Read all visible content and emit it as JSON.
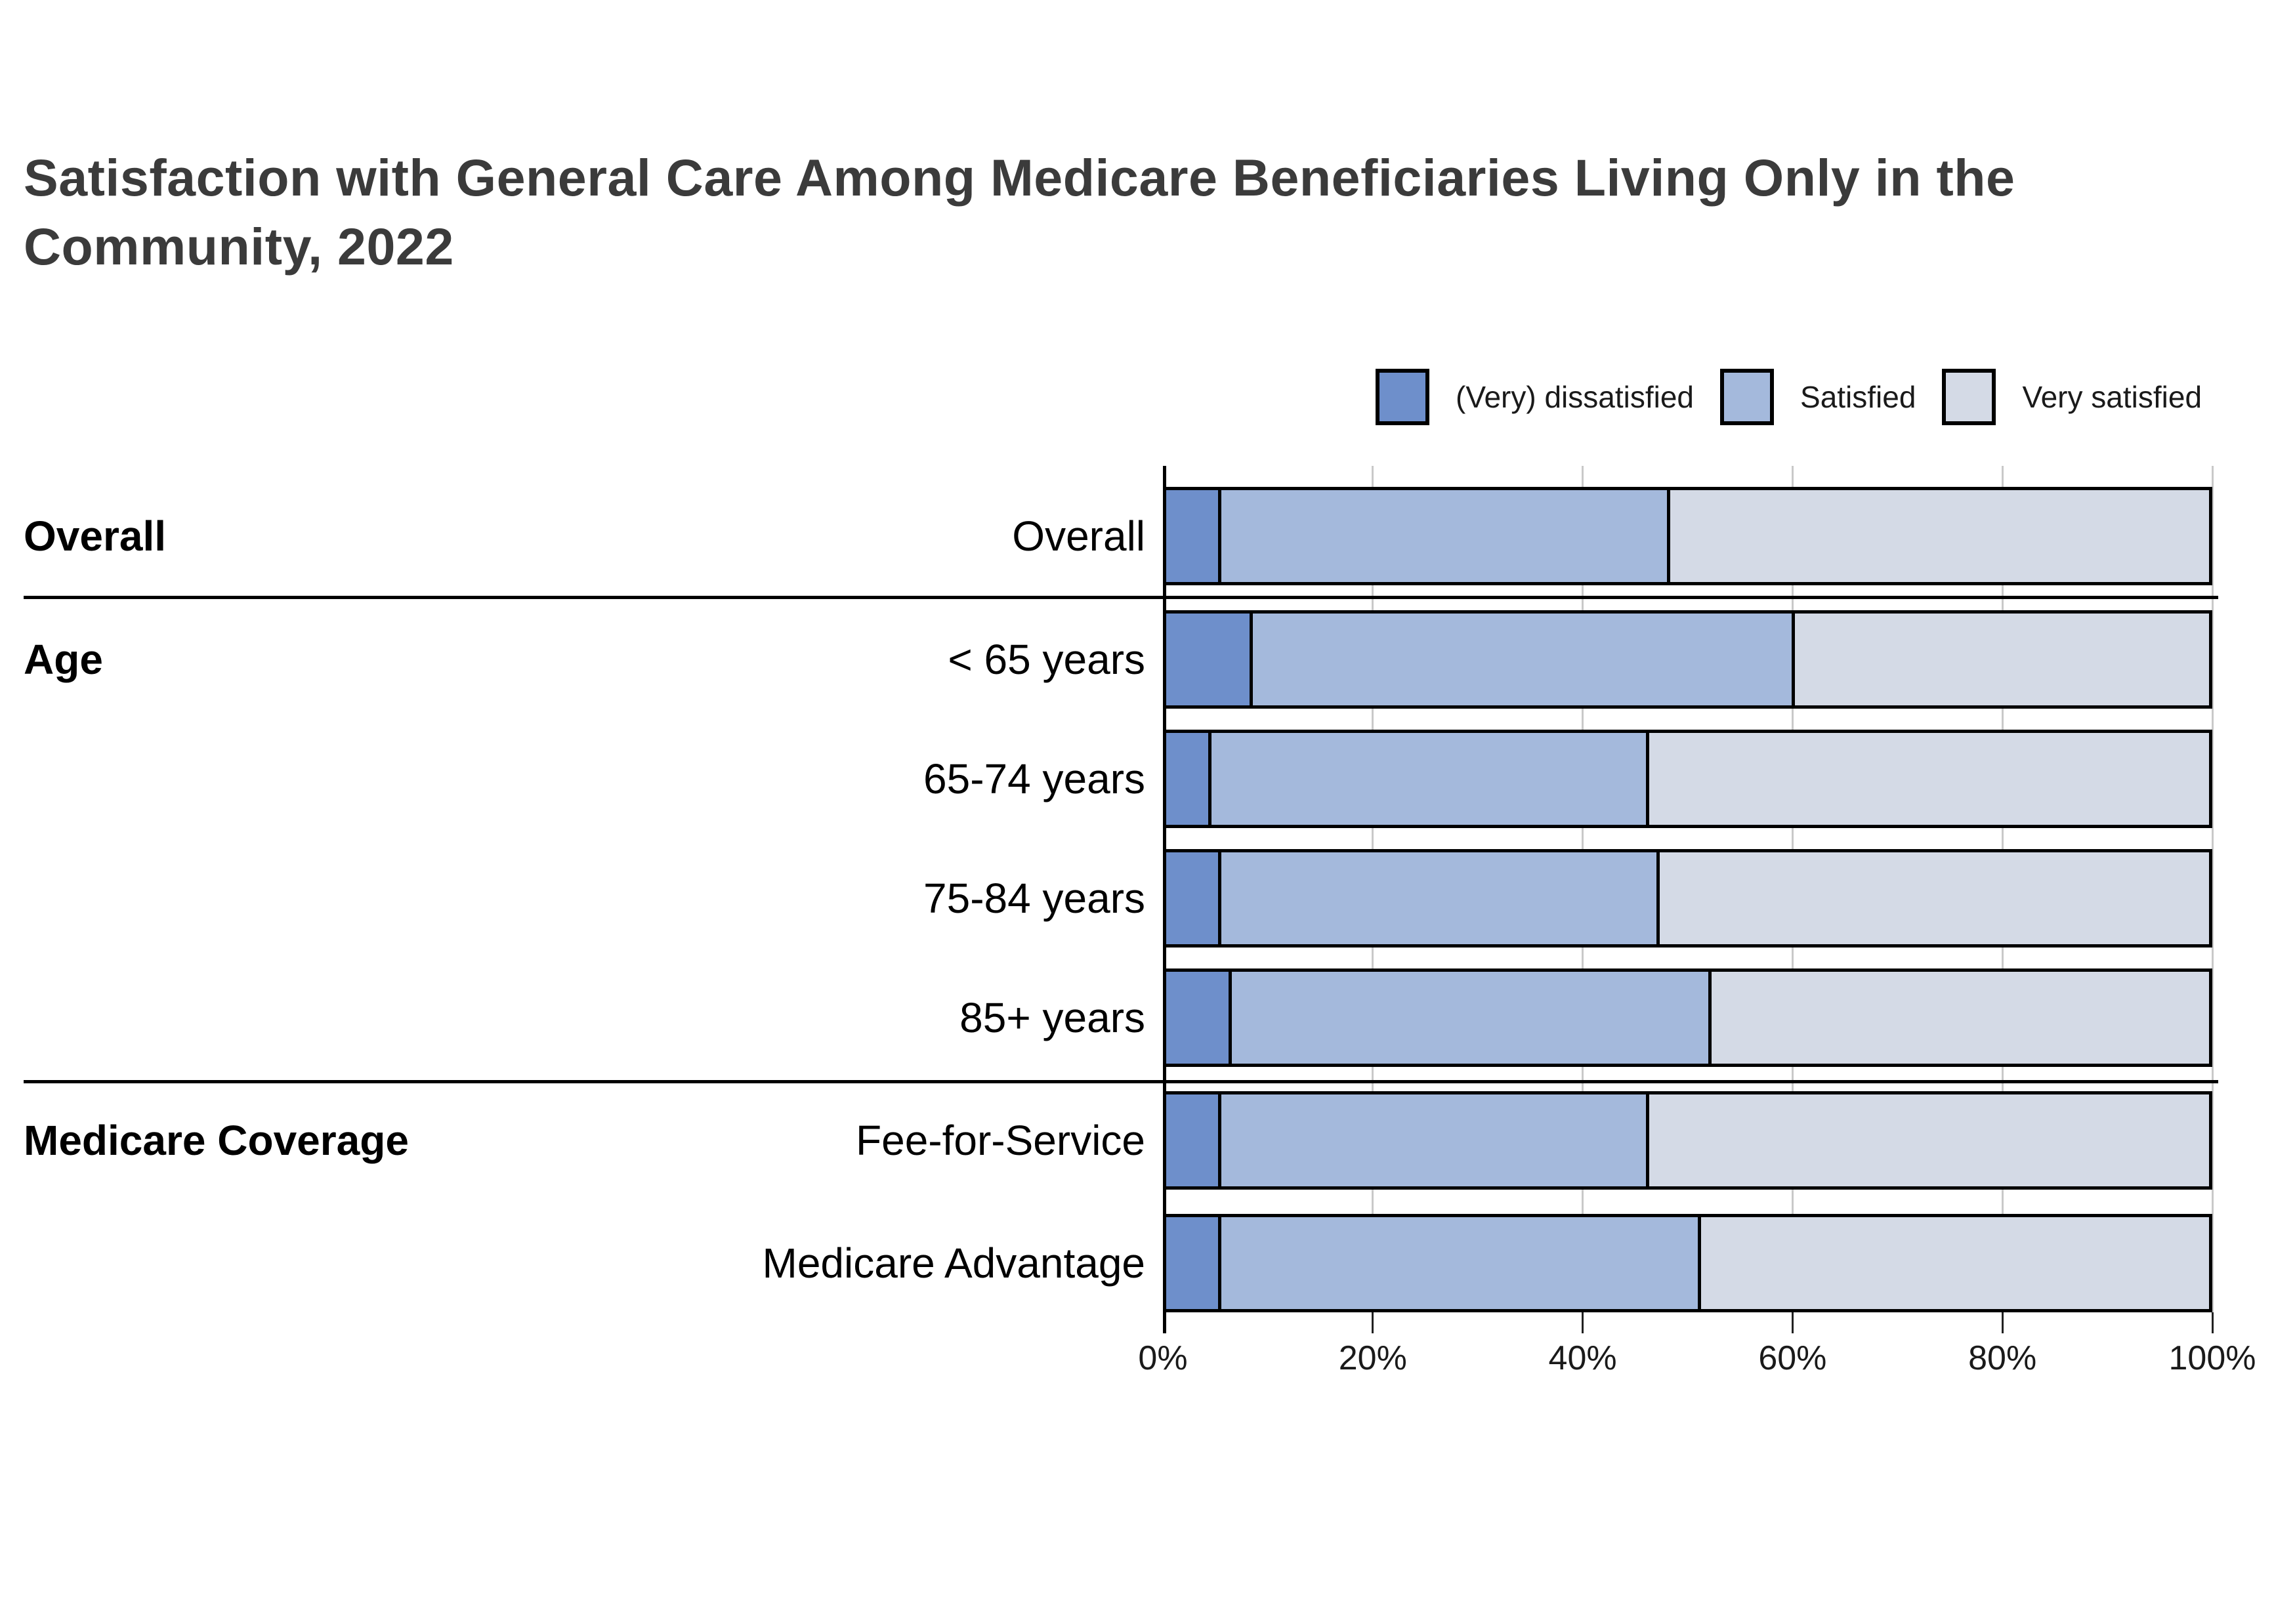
{
  "title": {
    "line1": "Satisfaction with General Care Among Medicare Beneficiaries Living Only in the",
    "line2": "Community, 2022"
  },
  "legend": [
    {
      "label": "(Very) dissatisfied",
      "color": "#6E8FCB"
    },
    {
      "label": "Satisfied",
      "color": "#A4B9DC"
    },
    {
      "label": "Very satisfied",
      "color": "#D4DAE6"
    }
  ],
  "chart_data": {
    "type": "bar",
    "stacked": true,
    "orientation": "horizontal",
    "title": "Satisfaction with General Care Among Medicare Beneficiaries Living Only in the Community, 2022",
    "series_names": [
      "(Very) dissatisfied",
      "Satisfied",
      "Very satisfied"
    ],
    "series_colors": [
      "#6E8FCB",
      "#A4B9DC",
      "#D4DAE6"
    ],
    "rows": [
      {
        "group": "Overall",
        "label": "Overall",
        "values": [
          5,
          43,
          52
        ]
      },
      {
        "group": "Age",
        "label": "< 65 years",
        "values": [
          8,
          52,
          40
        ]
      },
      {
        "group": "",
        "label": "65-74 years",
        "values": [
          4,
          42,
          54
        ]
      },
      {
        "group": "",
        "label": "75-84 years",
        "values": [
          5,
          42,
          53
        ]
      },
      {
        "group": "",
        "label": "85+ years",
        "values": [
          6,
          46,
          48
        ]
      },
      {
        "group": "Medicare Coverage",
        "label": "Fee-for-Service",
        "values": [
          5,
          41,
          54
        ]
      },
      {
        "group": "",
        "label": "Medicare Advantage",
        "values": [
          5,
          46,
          49
        ]
      }
    ],
    "separators_after_rows": [
      0,
      4
    ],
    "x_axis": {
      "tick_labels": [
        "0%",
        "20%",
        "40%",
        "60%",
        "80%",
        "100%"
      ],
      "tick_values": [
        0,
        20,
        40,
        60,
        80,
        100
      ],
      "min": 0,
      "max": 100,
      "grid": true
    },
    "legend_position": "top-right",
    "bar_border_color": "#000000",
    "gridline_color": "#c9c9c9"
  }
}
